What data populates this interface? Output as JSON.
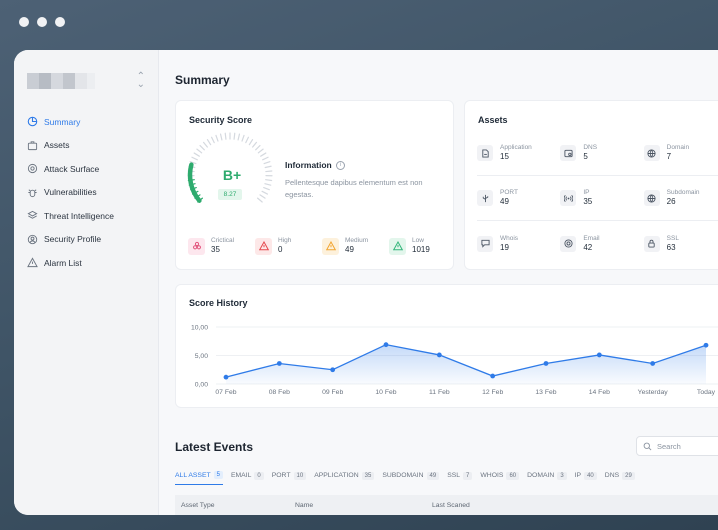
{
  "colors": {
    "accent": "#2f7be8",
    "good": "#2eab6e",
    "critical": "#e2587f",
    "high": "#e5484d",
    "medium": "#f2a531",
    "low": "#33b57a"
  },
  "sidebar": {
    "items": [
      {
        "label": "Summary",
        "icon": "pie-chart-icon",
        "active": true
      },
      {
        "label": "Assets",
        "icon": "briefcase-icon"
      },
      {
        "label": "Attack Surface",
        "icon": "target-icon"
      },
      {
        "label": "Vulnerabilities",
        "icon": "bug-icon"
      },
      {
        "label": "Threat Intelligence",
        "icon": "stack-icon"
      },
      {
        "label": "Security Profile",
        "icon": "user-circle-icon"
      },
      {
        "label": "Alarm List",
        "icon": "warning-icon"
      }
    ]
  },
  "main": {
    "title": "Summary"
  },
  "score": {
    "title": "Security Score",
    "grade": "B+",
    "value": "8.27",
    "value_fraction": 0.827,
    "info_title": "Information",
    "info_text": "Pellentesque dapibus elementum est non egestas.",
    "severities": [
      {
        "label": "Crictical",
        "value": "35"
      },
      {
        "label": "High",
        "value": "0"
      },
      {
        "label": "Medium",
        "value": "49"
      },
      {
        "label": "Low",
        "value": "1019"
      }
    ]
  },
  "assets": {
    "title": "Assets",
    "items": [
      {
        "label": "Application",
        "value": "15",
        "icon": "app-icon"
      },
      {
        "label": "DNS",
        "value": "5",
        "icon": "dns-icon"
      },
      {
        "label": "Domain",
        "value": "7",
        "icon": "globe-icon"
      },
      {
        "label": "PORT",
        "value": "49",
        "icon": "usb-icon"
      },
      {
        "label": "IP",
        "value": "35",
        "icon": "signal-icon"
      },
      {
        "label": "Subdomain",
        "value": "26",
        "icon": "globe-icon"
      },
      {
        "label": "Whois",
        "value": "19",
        "icon": "chat-icon"
      },
      {
        "label": "Email",
        "value": "42",
        "icon": "at-icon"
      },
      {
        "label": "SSL",
        "value": "63",
        "icon": "lock-icon"
      }
    ]
  },
  "history": {
    "title": "Score History"
  },
  "chart_data": {
    "type": "area",
    "categories": [
      "07 Feb",
      "08 Feb",
      "09 Feb",
      "10 Feb",
      "11 Feb",
      "12 Feb",
      "13 Feb",
      "14 Feb",
      "Yesterday",
      "Today"
    ],
    "values": [
      1.2,
      3.6,
      2.5,
      6.9,
      5.1,
      1.4,
      3.6,
      5.1,
      3.6,
      6.8
    ],
    "y_ticks": [
      "0,00",
      "5,00",
      "10,00"
    ],
    "ylim": [
      0,
      10
    ],
    "line_color": "#2f7be8"
  },
  "events": {
    "title": "Latest Events",
    "search_placeholder": "Search",
    "tabs": [
      {
        "label": "ALL ASSET",
        "count": "5",
        "active": true
      },
      {
        "label": "EMAIL",
        "count": "0"
      },
      {
        "label": "PORT",
        "count": "10"
      },
      {
        "label": "APPLICATION",
        "count": "35"
      },
      {
        "label": "SUBDOMAIN",
        "count": "49"
      },
      {
        "label": "SSL",
        "count": "7"
      },
      {
        "label": "WHOIS",
        "count": "60"
      },
      {
        "label": "DOMAIN",
        "count": "3"
      },
      {
        "label": "IP",
        "count": "40"
      },
      {
        "label": "DNS",
        "count": "29"
      }
    ],
    "columns": [
      "Asset Type",
      "Name",
      "Last Scaned"
    ]
  }
}
